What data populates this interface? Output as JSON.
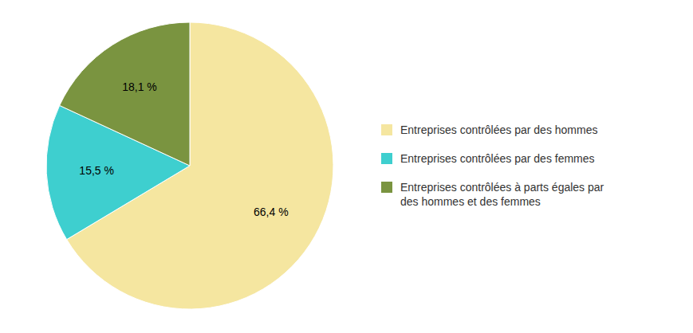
{
  "chart_data": {
    "type": "pie",
    "categories": [
      "Entreprises contrôlées par des hommes",
      "Entreprises contrôlées par des femmes",
      "Entreprises contrôlées à parts égales par\ndes hommes et des femmes"
    ],
    "values": [
      66.4,
      15.5,
      18.1
    ],
    "value_labels": [
      "66,4 %",
      "15,5 %",
      "18,1 %"
    ],
    "colors": [
      "#F5E6A0",
      "#3ECFCF",
      "#7A9440"
    ],
    "data_labels": true,
    "legend": "right"
  }
}
